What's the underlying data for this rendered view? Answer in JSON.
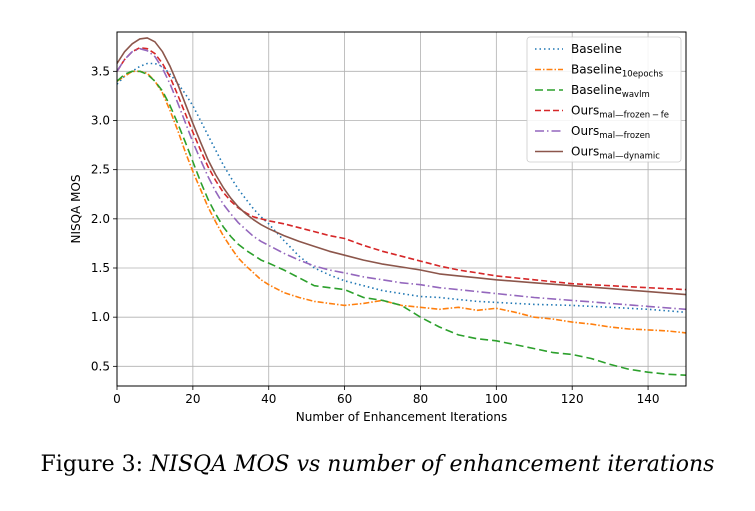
{
  "caption": {
    "prefix": "Figure 3: ",
    "text": "NISQA MOS vs number of enhancement iterations"
  },
  "chart_data": {
    "type": "line",
    "xlabel": "Number of Enhancement Iterations",
    "ylabel": "NISQA MOS",
    "xlim": [
      0,
      150
    ],
    "ylim": [
      0.3,
      3.9
    ],
    "xticks": [
      0,
      20,
      40,
      60,
      80,
      100,
      120,
      140
    ],
    "yticks": [
      0.5,
      1.0,
      1.5,
      2.0,
      2.5,
      3.0,
      3.5
    ],
    "grid": true,
    "legend_position": "top-right",
    "series": [
      {
        "name": "Baseline",
        "name_sub": "",
        "color": "#1f77b4",
        "dash": "1.5,3",
        "x": [
          0,
          2,
          4,
          6,
          8,
          10,
          12,
          14,
          16,
          18,
          20,
          22,
          24,
          26,
          28,
          30,
          32,
          34,
          36,
          38,
          40,
          44,
          48,
          52,
          56,
          60,
          65,
          70,
          75,
          80,
          85,
          90,
          95,
          100,
          110,
          120,
          130,
          140,
          150
        ],
        "y": [
          3.37,
          3.45,
          3.5,
          3.55,
          3.58,
          3.58,
          3.55,
          3.47,
          3.38,
          3.27,
          3.15,
          3.0,
          2.85,
          2.7,
          2.55,
          2.42,
          2.3,
          2.2,
          2.1,
          2.02,
          1.95,
          1.78,
          1.62,
          1.5,
          1.43,
          1.37,
          1.32,
          1.27,
          1.24,
          1.21,
          1.2,
          1.18,
          1.16,
          1.15,
          1.13,
          1.12,
          1.1,
          1.08,
          1.05
        ]
      },
      {
        "name": "Baseline",
        "name_sub": "10epochs",
        "color": "#ff7f0e",
        "dash": "6,2,1.5,2",
        "x": [
          0,
          2,
          4,
          6,
          8,
          10,
          12,
          14,
          16,
          18,
          20,
          22,
          24,
          26,
          28,
          30,
          32,
          34,
          36,
          38,
          40,
          44,
          48,
          52,
          56,
          60,
          65,
          70,
          75,
          80,
          85,
          90,
          95,
          100,
          105,
          110,
          115,
          120,
          125,
          130,
          135,
          140,
          145,
          150
        ],
        "y": [
          3.4,
          3.45,
          3.5,
          3.5,
          3.48,
          3.4,
          3.28,
          3.1,
          2.9,
          2.68,
          2.48,
          2.3,
          2.12,
          1.97,
          1.83,
          1.71,
          1.6,
          1.52,
          1.45,
          1.38,
          1.33,
          1.25,
          1.2,
          1.16,
          1.14,
          1.12,
          1.14,
          1.17,
          1.12,
          1.1,
          1.08,
          1.1,
          1.07,
          1.09,
          1.05,
          1.0,
          0.98,
          0.95,
          0.93,
          0.9,
          0.88,
          0.87,
          0.86,
          0.84
        ]
      },
      {
        "name": "Baseline",
        "name_sub": "wavlm",
        "color": "#2ca02c",
        "dash": "8,4",
        "x": [
          0,
          2,
          4,
          6,
          8,
          10,
          12,
          14,
          16,
          18,
          20,
          22,
          24,
          26,
          28,
          30,
          32,
          34,
          36,
          38,
          40,
          44,
          48,
          52,
          56,
          60,
          65,
          70,
          75,
          80,
          85,
          90,
          95,
          100,
          105,
          110,
          115,
          120,
          125,
          130,
          135,
          140,
          145,
          150
        ],
        "y": [
          3.4,
          3.47,
          3.5,
          3.5,
          3.47,
          3.4,
          3.3,
          3.15,
          2.97,
          2.78,
          2.58,
          2.38,
          2.2,
          2.05,
          1.92,
          1.82,
          1.74,
          1.68,
          1.63,
          1.58,
          1.55,
          1.48,
          1.4,
          1.32,
          1.3,
          1.28,
          1.2,
          1.17,
          1.12,
          1.0,
          0.9,
          0.82,
          0.78,
          0.76,
          0.72,
          0.68,
          0.64,
          0.62,
          0.58,
          0.52,
          0.47,
          0.44,
          0.42,
          0.41
        ]
      },
      {
        "name": "Ours",
        "name_sub": "mal—frozen − fe",
        "color": "#d62728",
        "dash": "6,3",
        "x": [
          0,
          2,
          4,
          6,
          8,
          10,
          12,
          14,
          16,
          18,
          20,
          22,
          24,
          26,
          28,
          30,
          32,
          34,
          36,
          38,
          40,
          44,
          48,
          52,
          56,
          60,
          65,
          70,
          75,
          80,
          85,
          90,
          95,
          100,
          110,
          120,
          130,
          140,
          150
        ],
        "y": [
          3.5,
          3.62,
          3.7,
          3.74,
          3.73,
          3.68,
          3.58,
          3.44,
          3.26,
          3.07,
          2.88,
          2.7,
          2.53,
          2.39,
          2.27,
          2.18,
          2.11,
          2.06,
          2.02,
          2.0,
          1.98,
          1.95,
          1.91,
          1.87,
          1.83,
          1.8,
          1.73,
          1.67,
          1.62,
          1.57,
          1.52,
          1.48,
          1.45,
          1.42,
          1.38,
          1.34,
          1.32,
          1.3,
          1.28
        ]
      },
      {
        "name": "Ours",
        "name_sub": "mal—frozen",
        "color": "#9467bd",
        "dash": "9,3,1.5,3",
        "x": [
          0,
          2,
          4,
          6,
          8,
          10,
          12,
          14,
          16,
          18,
          20,
          22,
          24,
          26,
          28,
          30,
          32,
          34,
          36,
          38,
          40,
          44,
          48,
          52,
          56,
          60,
          65,
          70,
          75,
          80,
          85,
          90,
          95,
          100,
          110,
          120,
          130,
          140,
          150
        ],
        "y": [
          3.5,
          3.62,
          3.7,
          3.73,
          3.71,
          3.65,
          3.53,
          3.37,
          3.18,
          2.98,
          2.78,
          2.6,
          2.43,
          2.28,
          2.15,
          2.05,
          1.96,
          1.89,
          1.82,
          1.77,
          1.73,
          1.65,
          1.58,
          1.52,
          1.48,
          1.45,
          1.41,
          1.38,
          1.35,
          1.33,
          1.3,
          1.28,
          1.26,
          1.24,
          1.2,
          1.17,
          1.14,
          1.11,
          1.08
        ]
      },
      {
        "name": "Ours",
        "name_sub": "mal—dynamic",
        "color": "#8c564b",
        "dash": "",
        "x": [
          0,
          2,
          4,
          6,
          8,
          10,
          12,
          14,
          16,
          18,
          20,
          22,
          24,
          26,
          28,
          30,
          32,
          34,
          36,
          38,
          40,
          44,
          48,
          52,
          56,
          60,
          65,
          70,
          75,
          80,
          85,
          90,
          95,
          100,
          110,
          120,
          130,
          140,
          150
        ],
        "y": [
          3.58,
          3.7,
          3.78,
          3.83,
          3.84,
          3.8,
          3.7,
          3.55,
          3.37,
          3.17,
          2.97,
          2.78,
          2.6,
          2.45,
          2.32,
          2.21,
          2.12,
          2.05,
          1.99,
          1.94,
          1.9,
          1.83,
          1.77,
          1.72,
          1.67,
          1.63,
          1.58,
          1.54,
          1.51,
          1.48,
          1.44,
          1.42,
          1.4,
          1.38,
          1.35,
          1.32,
          1.29,
          1.26,
          1.23
        ]
      }
    ]
  }
}
